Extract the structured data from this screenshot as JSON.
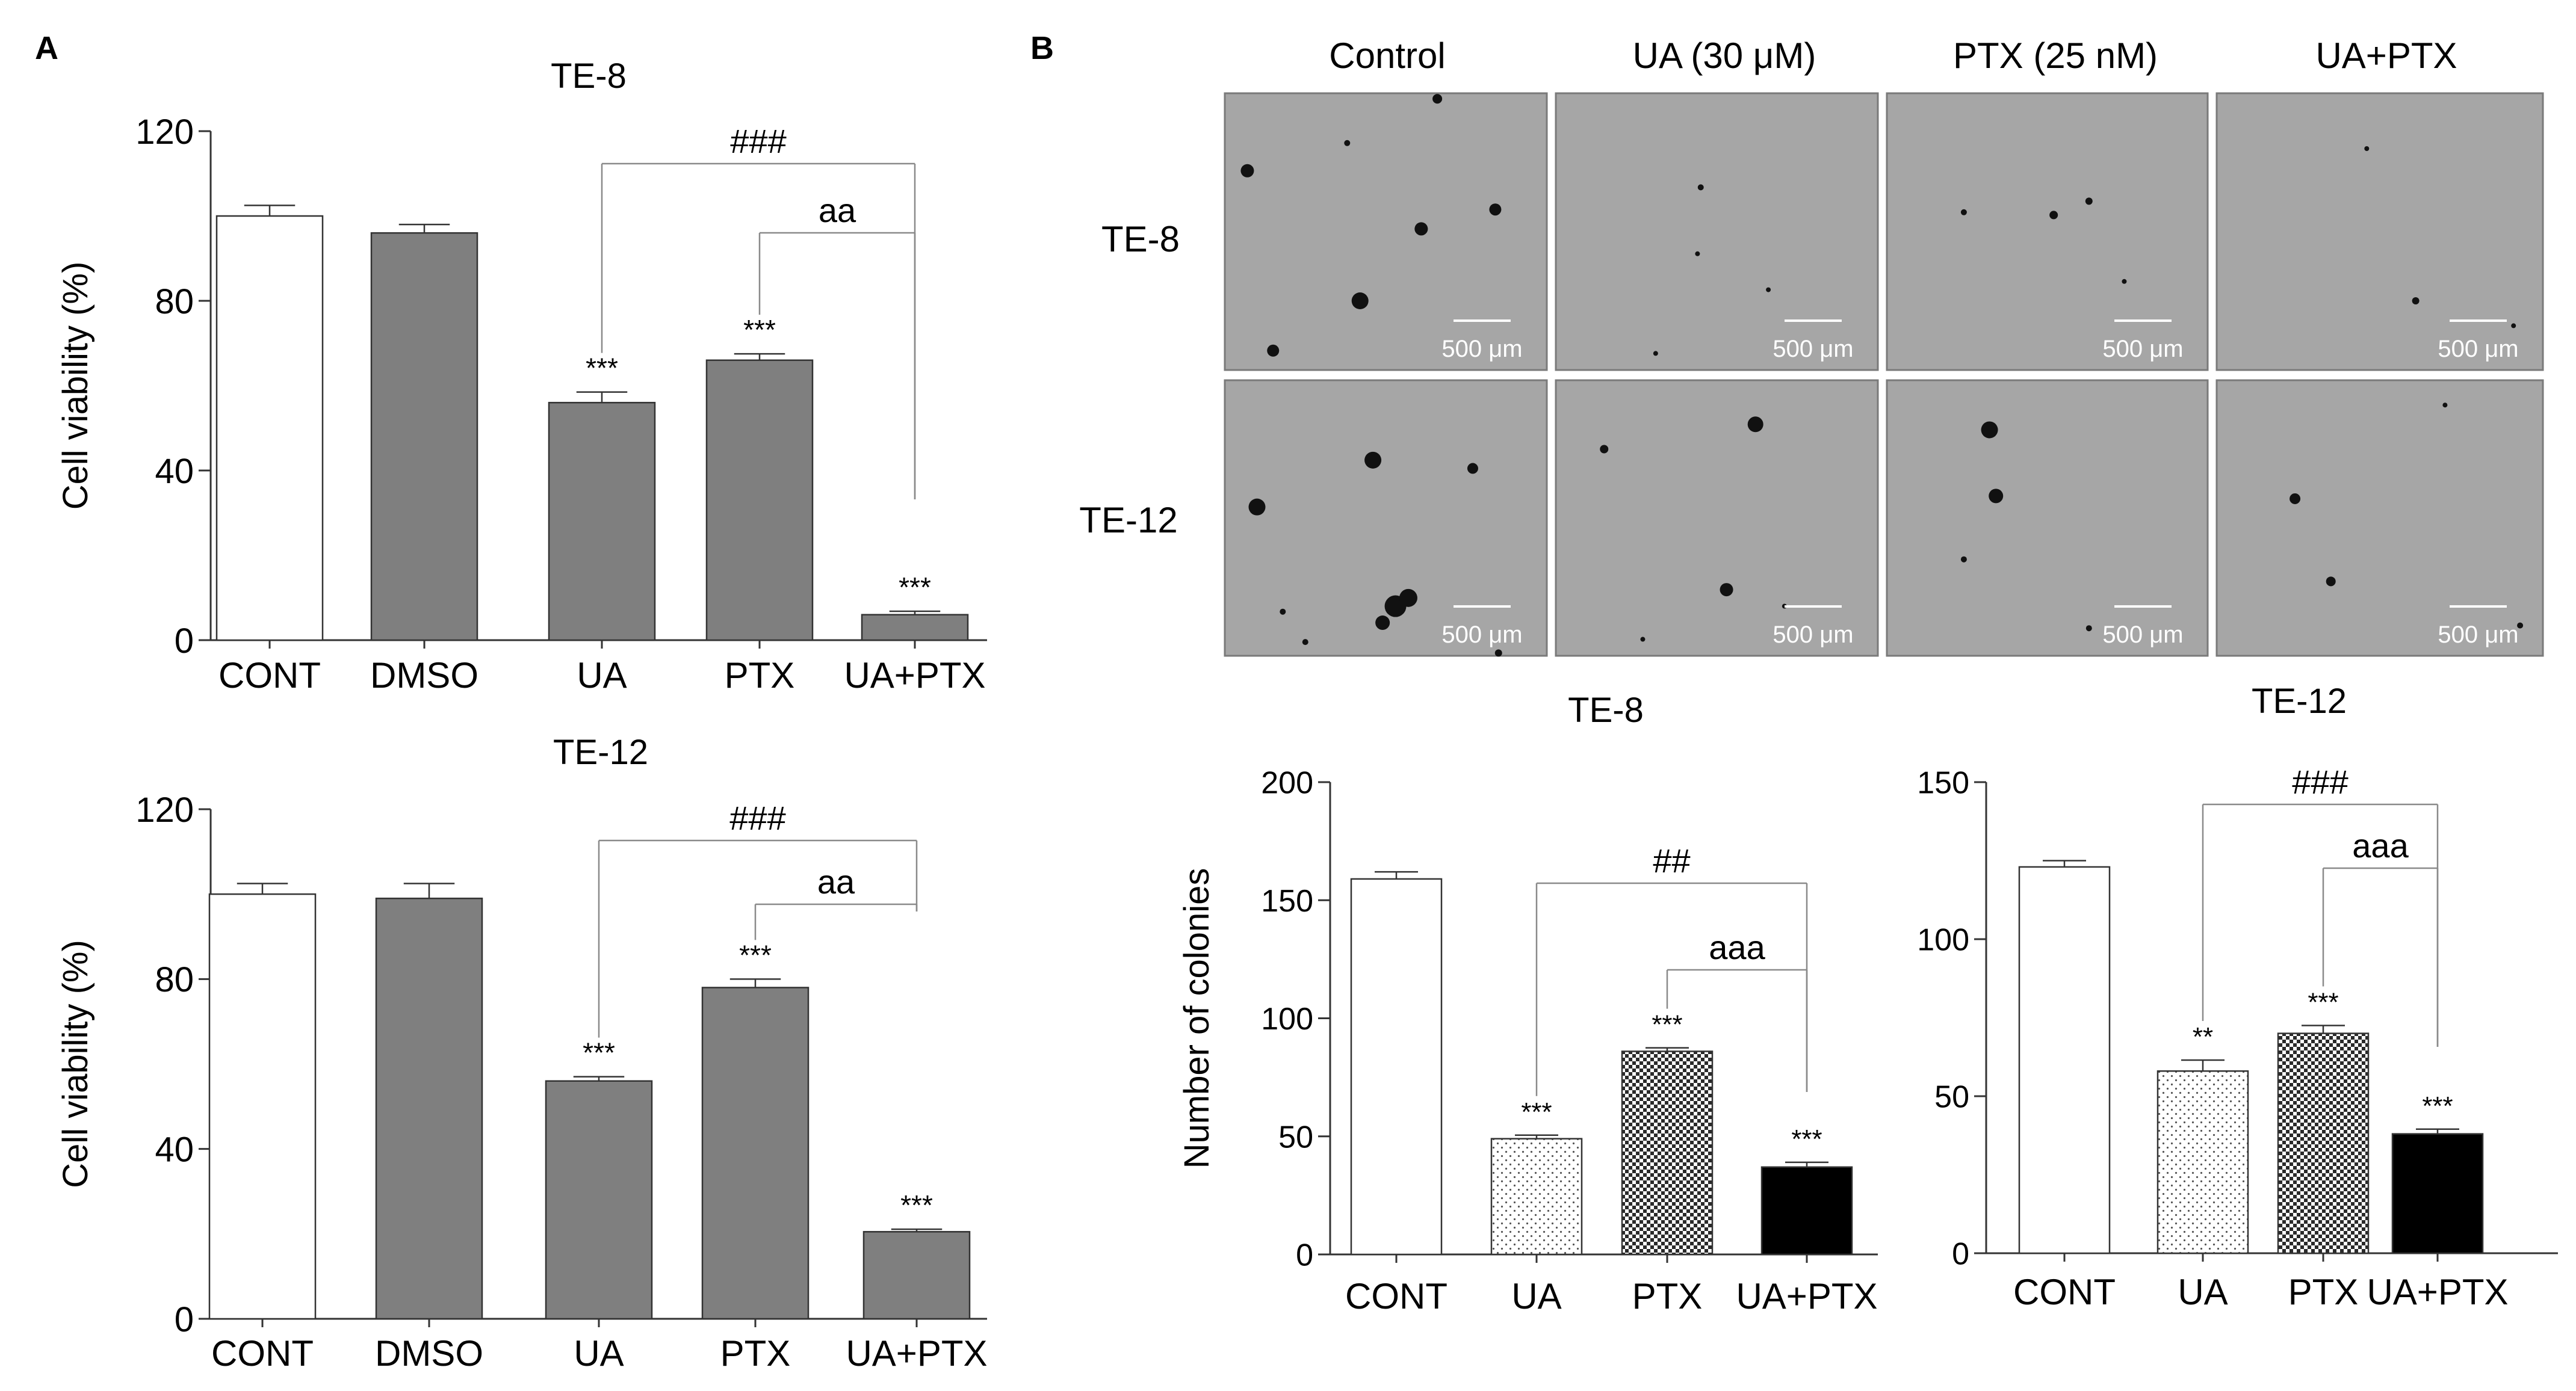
{
  "panel_labels": {
    "a": "A",
    "b": "B"
  },
  "micrograph": {
    "columns": [
      "Control",
      "UA (30 μM)",
      "PTX (25 nM)",
      "UA+PTX"
    ],
    "rows": [
      "TE-8",
      "TE-12"
    ],
    "scale_bar_label": "500 μm"
  },
  "significance_marks": {
    "viability_te8": {
      "hash": "###",
      "letters": "aa"
    },
    "viability_te12": {
      "hash": "###",
      "letters": "aa"
    },
    "colonies_te8": {
      "hash": "##",
      "letters": "aaa"
    },
    "colonies_te12": {
      "hash": "###",
      "letters": "aaa"
    }
  },
  "chart_data": [
    {
      "type": "bar",
      "title": "TE-8",
      "xlabel": "",
      "ylabel": "Cell viability (%)",
      "ylim": [
        0,
        120
      ],
      "yticks": [
        0,
        40,
        80,
        120
      ],
      "categories": [
        "CONT",
        "DMSO",
        "UA",
        "PTX",
        "UA+PTX"
      ],
      "values": [
        100,
        96,
        56,
        66,
        6
      ],
      "errors": [
        2.5,
        2,
        2.5,
        1.5,
        0.8
      ],
      "annotations": [
        "",
        "",
        "***",
        "***",
        "***"
      ],
      "fills": [
        "white",
        "gray",
        "gray",
        "gray",
        "gray"
      ]
    },
    {
      "type": "bar",
      "title": "TE-12",
      "xlabel": "",
      "ylabel": "Cell viability (%)",
      "ylim": [
        0,
        120
      ],
      "yticks": [
        0,
        40,
        80,
        120
      ],
      "categories": [
        "CONT",
        "DMSO",
        "UA",
        "PTX",
        "UA+PTX"
      ],
      "values": [
        100,
        99,
        56,
        78,
        20.5
      ],
      "errors": [
        2.5,
        3.5,
        1,
        2,
        0.6
      ],
      "annotations": [
        "",
        "",
        "***",
        "***",
        "***"
      ],
      "fills": [
        "white",
        "gray",
        "gray",
        "gray",
        "gray"
      ]
    },
    {
      "type": "bar",
      "title": "TE-8",
      "xlabel": "",
      "ylabel": "Number of colonies",
      "ylim": [
        0,
        200
      ],
      "yticks": [
        0,
        50,
        100,
        150,
        200
      ],
      "categories": [
        "CONT",
        "UA",
        "PTX",
        "UA+PTX"
      ],
      "values": [
        159,
        49,
        86,
        37
      ],
      "errors": [
        3,
        1.5,
        1.5,
        2
      ],
      "annotations": [
        "",
        "***",
        "***",
        "***"
      ],
      "fills": [
        "white",
        "dots",
        "check",
        "black"
      ]
    },
    {
      "type": "bar",
      "title": "TE-12",
      "xlabel": "",
      "ylabel": "",
      "ylim": [
        0,
        150
      ],
      "yticks": [
        0,
        50,
        100,
        150
      ],
      "categories": [
        "CONT",
        "UA",
        "PTX",
        "UA+PTX"
      ],
      "values": [
        123,
        58,
        70,
        38
      ],
      "errors": [
        2,
        3.5,
        2.5,
        1.5
      ],
      "annotations": [
        "",
        "**",
        "***",
        "***"
      ],
      "fills": [
        "white",
        "dots",
        "check",
        "black"
      ]
    }
  ]
}
